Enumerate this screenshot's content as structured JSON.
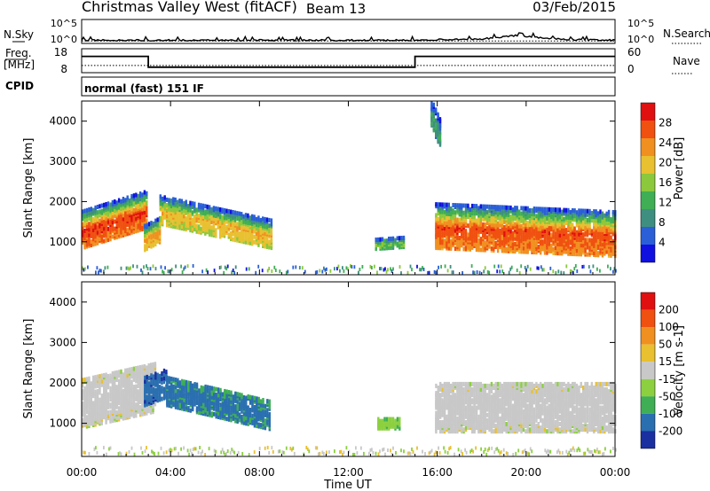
{
  "header": {
    "station": "Christmas Valley West (fitACF)",
    "beam": "Beam 13",
    "date": "03/Feb/2015"
  },
  "left_labels": {
    "nsky": "N.Sky",
    "freq_line1": "Freq.",
    "freq_line2": "[MHz]",
    "cpid": "CPID"
  },
  "right_labels": {
    "nsearch": "N.Search",
    "nave": "Nave"
  },
  "cpid_text": "normal (fast) 151 IF",
  "colors": {
    "power_scale": [
      "#1010e0",
      "#2a5fd8",
      "#3f8f80",
      "#3fae55",
      "#8cc83c",
      "#e8c030",
      "#f09020",
      "#f05010",
      "#e01010"
    ],
    "velocity_scale": [
      "#e01010",
      "#f05010",
      "#f09020",
      "#e8c030",
      "#c8c8c8",
      "#8cd040",
      "#3fae55",
      "#2a6fb0",
      "#1a2fa0"
    ]
  },
  "chart_data": [
    {
      "type": "line",
      "panel": "noise",
      "ylabels_left": [
        "10^5",
        "10^0"
      ],
      "ylabels_right": [
        "10^5",
        "10^0"
      ],
      "series": [
        {
          "name": "N.Sky",
          "x_hours": [
            0,
            4,
            8,
            12,
            15,
            16,
            18,
            19.5,
            20.5,
            22,
            24
          ],
          "y": [
            0.5,
            0.5,
            0.5,
            0.5,
            0.5,
            0.6,
            0.7,
            1.3,
            1.0,
            0.6,
            0.5
          ]
        },
        {
          "name": "N.Search",
          "x_hours": [
            0,
            24
          ],
          "y": [
            0.4,
            0.4
          ]
        }
      ]
    },
    {
      "type": "line",
      "panel": "frequency",
      "ylabels_left": [
        "18",
        "8"
      ],
      "ylabels_right": [
        "60",
        "0"
      ],
      "series": [
        {
          "name": "Freq.",
          "x_hours": [
            0,
            3,
            3,
            15,
            15,
            24
          ],
          "y": [
            14.8,
            14.8,
            10.3,
            10.3,
            14.8,
            14.8
          ]
        },
        {
          "name": "Nave",
          "x_hours": [
            0,
            24
          ],
          "y": [
            18,
            18
          ]
        }
      ]
    },
    {
      "type": "heatmap",
      "panel": "power",
      "ylabel": "Slant Range [km]",
      "yticks": [
        "1000",
        "2000",
        "3000",
        "4000"
      ],
      "ylim": [
        180,
        4500
      ],
      "colorbar_label": "Power [dB]",
      "colorbar_ticks": [
        "4",
        "8",
        "12",
        "16",
        "20",
        "24",
        "28"
      ],
      "colorbar_range": [
        0,
        30
      ],
      "echo_regions": [
        {
          "t_start": 0.0,
          "t_end": 2.9,
          "range_center_start": 1300,
          "range_center_end": 1800,
          "width_km": 900,
          "peak_db": 27
        },
        {
          "t_start": 2.8,
          "t_end": 3.5,
          "range_center_start": 1100,
          "range_center_end": 1300,
          "width_km": 600,
          "peak_db": 22
        },
        {
          "t_start": 3.5,
          "t_end": 8.5,
          "range_center_start": 1800,
          "range_center_end": 1200,
          "width_km": 700,
          "peak_db": 20
        },
        {
          "t_start": 15.9,
          "t_end": 24.0,
          "range_center_start": 1400,
          "range_center_end": 1200,
          "width_km": 1100,
          "peak_db": 26
        },
        {
          "t_start": 13.2,
          "t_end": 14.5,
          "range_center_start": 950,
          "range_center_end": 1000,
          "width_km": 250,
          "peak_db": 14
        },
        {
          "t_start": 15.7,
          "t_end": 16.1,
          "range_center_start": 4200,
          "range_center_end": 3700,
          "width_km": 700,
          "peak_db": 10
        }
      ]
    },
    {
      "type": "heatmap",
      "panel": "velocity",
      "ylabel": "Slant Range [km]",
      "yticks": [
        "1000",
        "2000",
        "3000",
        "4000"
      ],
      "ylim": [
        180,
        4500
      ],
      "colorbar_label": "Velocity [m s-1]",
      "colorbar_ticks": [
        "200",
        "100",
        "50",
        "15",
        "-15",
        "-50",
        "-100",
        "-200"
      ],
      "colorbar_range": [
        -250,
        250
      ],
      "echo_regions": [
        {
          "t_start": 0.0,
          "t_end": 3.3,
          "range_center_start": 1500,
          "range_center_end": 1900,
          "width_km": 1200,
          "velocity": 0
        },
        {
          "t_start": 2.8,
          "t_end": 3.8,
          "range_center_start": 1800,
          "range_center_end": 2000,
          "width_km": 700,
          "velocity": -180
        },
        {
          "t_start": 3.8,
          "t_end": 8.5,
          "range_center_start": 1800,
          "range_center_end": 1200,
          "width_km": 700,
          "velocity": -150
        },
        {
          "t_start": 15.9,
          "t_end": 24.0,
          "range_center_start": 1400,
          "range_center_end": 1400,
          "width_km": 1200,
          "velocity": 0
        },
        {
          "t_start": 13.3,
          "t_end": 14.3,
          "range_center_start": 1000,
          "range_center_end": 1000,
          "width_km": 250,
          "velocity": -60
        }
      ]
    }
  ],
  "xaxis": {
    "label": "Time UT",
    "ticks": [
      "00:00",
      "04:00",
      "08:00",
      "12:00",
      "16:00",
      "20:00",
      "00:00"
    ],
    "range_hours": [
      0,
      24
    ]
  }
}
